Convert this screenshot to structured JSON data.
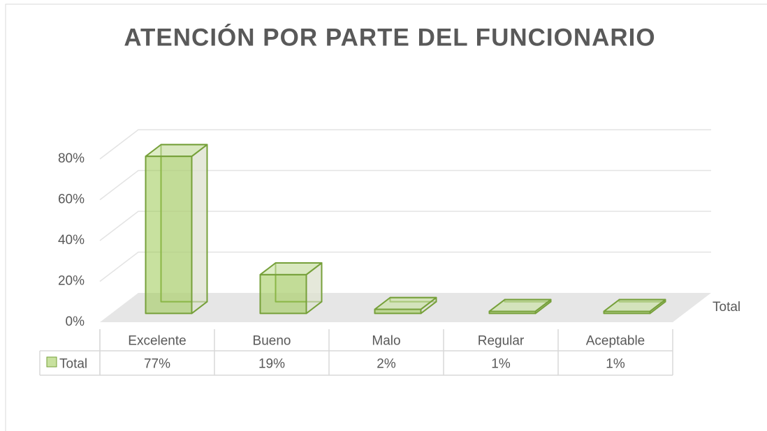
{
  "chart_data": {
    "type": "bar3d",
    "title": "ATENCIÓN POR PARTE DEL FUNCIONARIO",
    "categories": [
      "Excelente",
      "Bueno",
      "Malo",
      "Regular",
      "Aceptable"
    ],
    "series": [
      {
        "name": "Total",
        "color": "#9bc850",
        "values": [
          77,
          19,
          2,
          1,
          1
        ],
        "value_labels": [
          "77%",
          "19%",
          "2%",
          "1%",
          "1%"
        ]
      }
    ],
    "ylim": [
      0,
      80
    ],
    "yticks": [
      {
        "value": 0,
        "label": "0%"
      },
      {
        "value": 20,
        "label": "20%"
      },
      {
        "value": 40,
        "label": "40%"
      },
      {
        "value": 60,
        "label": "60%"
      },
      {
        "value": 80,
        "label": "80%"
      }
    ],
    "grid": true
  }
}
